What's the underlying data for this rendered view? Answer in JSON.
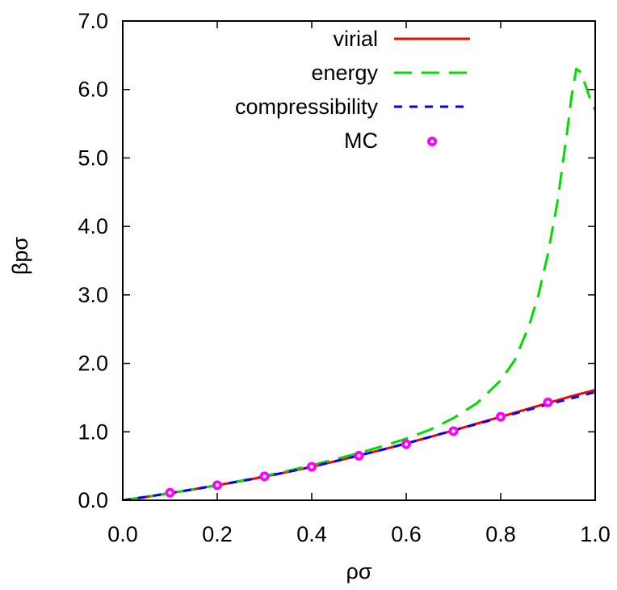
{
  "colors": {
    "virial": "#ff0000",
    "energy": "#00dd00",
    "compressibility": "#0000ff",
    "mc": "#ff00ff"
  },
  "chart_data": {
    "type": "line",
    "xlabel": "ρσ",
    "ylabel": "βpσ",
    "xlim": [
      0.0,
      1.0
    ],
    "ylim": [
      0.0,
      7.0
    ],
    "grid": false,
    "legend_position": "top-right",
    "xticks": [
      "0.0",
      "0.2",
      "0.4",
      "0.6",
      "0.8",
      "1.0"
    ],
    "yticks": [
      "0.0",
      "1.0",
      "2.0",
      "3.0",
      "4.0",
      "5.0",
      "6.0",
      "7.0"
    ],
    "series": [
      {
        "name": "virial",
        "style": "solid",
        "x": [
          0.0,
          0.05,
          0.1,
          0.15,
          0.2,
          0.25,
          0.3,
          0.35,
          0.4,
          0.45,
          0.5,
          0.55,
          0.6,
          0.65,
          0.7,
          0.75,
          0.8,
          0.85,
          0.9,
          0.95,
          1.0
        ],
        "y": [
          0.0,
          0.05,
          0.105,
          0.16,
          0.22,
          0.28,
          0.345,
          0.415,
          0.49,
          0.57,
          0.655,
          0.74,
          0.83,
          0.925,
          1.02,
          1.12,
          1.22,
          1.32,
          1.42,
          1.52,
          1.61
        ]
      },
      {
        "name": "energy",
        "style": "dashed",
        "x": [
          0.0,
          0.05,
          0.1,
          0.15,
          0.2,
          0.25,
          0.3,
          0.35,
          0.4,
          0.45,
          0.5,
          0.55,
          0.6,
          0.65,
          0.7,
          0.75,
          0.8,
          0.83,
          0.86,
          0.88,
          0.9,
          0.92,
          0.94,
          0.95,
          0.96,
          0.97,
          0.98,
          0.99,
          1.0
        ],
        "y": [
          0.0,
          0.05,
          0.105,
          0.16,
          0.22,
          0.285,
          0.355,
          0.43,
          0.51,
          0.6,
          0.69,
          0.79,
          0.9,
          1.03,
          1.2,
          1.42,
          1.75,
          2.05,
          2.55,
          3.0,
          3.6,
          4.35,
          5.35,
          5.9,
          6.3,
          6.25,
          6.05,
          5.85,
          5.7
        ]
      },
      {
        "name": "compressibility",
        "style": "dashed",
        "x": [
          0.0,
          0.05,
          0.1,
          0.15,
          0.2,
          0.25,
          0.3,
          0.35,
          0.4,
          0.45,
          0.5,
          0.55,
          0.6,
          0.65,
          0.7,
          0.75,
          0.8,
          0.85,
          0.9,
          0.95,
          1.0
        ],
        "y": [
          0.0,
          0.05,
          0.105,
          0.16,
          0.22,
          0.28,
          0.345,
          0.415,
          0.49,
          0.57,
          0.655,
          0.74,
          0.83,
          0.925,
          1.02,
          1.115,
          1.21,
          1.305,
          1.4,
          1.49,
          1.58
        ]
      },
      {
        "name": "MC",
        "style": "points",
        "x": [
          0.1,
          0.2,
          0.3,
          0.4,
          0.5,
          0.6,
          0.7,
          0.8,
          0.9
        ],
        "y": [
          0.11,
          0.22,
          0.35,
          0.49,
          0.65,
          0.82,
          1.01,
          1.22,
          1.43
        ]
      }
    ]
  }
}
